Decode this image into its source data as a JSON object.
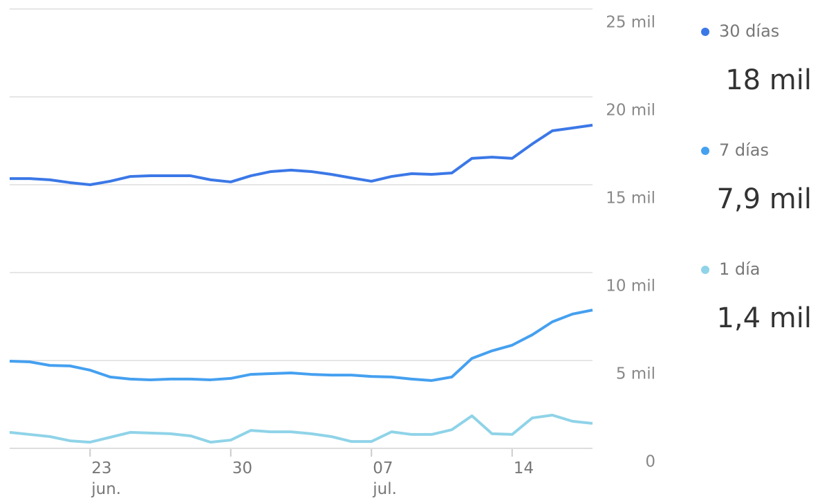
{
  "chart_data": {
    "type": "line",
    "categories": [
      null,
      null,
      null,
      null,
      "23 jun.",
      null,
      null,
      null,
      null,
      null,
      null,
      "30",
      null,
      null,
      null,
      null,
      null,
      null,
      "07 jul.",
      null,
      null,
      null,
      null,
      null,
      null,
      "14",
      null,
      null,
      null,
      null
    ],
    "series": [
      {
        "name": "30 días",
        "color": "#3b78e7",
        "latest": {
          "value": 18000,
          "label": "18 mil"
        },
        "values": [
          15350,
          15350,
          15280,
          15120,
          15000,
          15200,
          15470,
          15510,
          15510,
          15510,
          15280,
          15160,
          15510,
          15750,
          15830,
          15750,
          15590,
          15390,
          15200,
          15470,
          15630,
          15590,
          15670,
          16500,
          16570,
          16500,
          17320,
          18070,
          18230,
          18390
        ]
      },
      {
        "name": "7 días",
        "color": "#45a0f0",
        "latest": {
          "value": 7900,
          "label": "7,9 mil"
        },
        "values": [
          4960,
          4920,
          4720,
          4690,
          4450,
          4060,
          3940,
          3900,
          3940,
          3940,
          3900,
          3980,
          4210,
          4250,
          4290,
          4210,
          4170,
          4170,
          4090,
          4060,
          3940,
          3860,
          4060,
          5120,
          5550,
          5870,
          6460,
          7200,
          7640,
          7870
        ]
      },
      {
        "name": "1 día",
        "color": "#8fd3e8",
        "latest": {
          "value": 1400,
          "label": "1,4 mil"
        },
        "values": [
          910,
          790,
          670,
          430,
          350,
          630,
          910,
          870,
          830,
          710,
          350,
          470,
          1020,
          940,
          940,
          830,
          670,
          390,
          390,
          940,
          790,
          790,
          1060,
          1850,
          830,
          790,
          1730,
          1890,
          1540,
          1420
        ]
      }
    ],
    "ylim": [
      0,
      25000
    ],
    "yticks": [
      0,
      {
        "value": 5000,
        "label": "5 mil"
      },
      {
        "value": 10000,
        "label": "10 mil"
      },
      {
        "value": 15000,
        "label": "15 mil"
      },
      {
        "value": 20000,
        "label": "20 mil"
      },
      {
        "value": 25000,
        "label": "25 mil"
      }
    ],
    "grid": true
  }
}
